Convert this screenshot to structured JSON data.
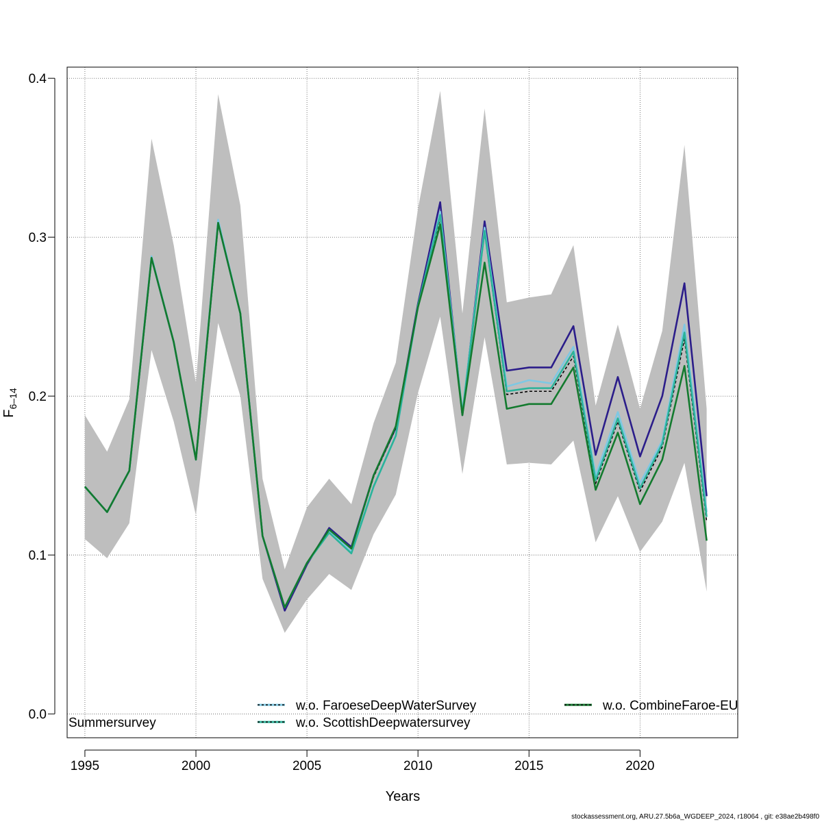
{
  "chart_data": {
    "type": "line",
    "xlabel": "Years",
    "ylabel": "F",
    "ylabel_sub": "6–14",
    "xlim": [
      1994.2,
      2024.4
    ],
    "ylim": [
      -0.015,
      0.407
    ],
    "xticks": [
      1995,
      2000,
      2005,
      2010,
      2015,
      2020
    ],
    "yticks": [
      0.0,
      0.1,
      0.2,
      0.3,
      0.4
    ],
    "ytick_labels": [
      "0.0",
      "0.1",
      "0.2",
      "0.3",
      "0.4"
    ],
    "grid": true,
    "x": [
      1995,
      1996,
      1997,
      1998,
      1999,
      2000,
      2001,
      2002,
      2003,
      2004,
      2005,
      2006,
      2007,
      2008,
      2009,
      2010,
      2011,
      2012,
      2013,
      2014,
      2015,
      2016,
      2017,
      2018,
      2019,
      2020,
      2021,
      2022,
      2023
    ],
    "band": {
      "color": "#bebebe",
      "upper": [
        0.188,
        0.165,
        0.198,
        0.362,
        0.295,
        0.208,
        0.39,
        0.32,
        0.148,
        0.091,
        0.13,
        0.148,
        0.132,
        0.183,
        0.221,
        0.318,
        0.392,
        0.252,
        0.381,
        0.259,
        0.262,
        0.264,
        0.295,
        0.194,
        0.245,
        0.192,
        0.241,
        0.358,
        0.192
      ],
      "lower": [
        0.11,
        0.098,
        0.12,
        0.229,
        0.184,
        0.125,
        0.246,
        0.2,
        0.085,
        0.051,
        0.072,
        0.088,
        0.078,
        0.113,
        0.138,
        0.202,
        0.25,
        0.151,
        0.237,
        0.157,
        0.158,
        0.157,
        0.172,
        0.108,
        0.137,
        0.102,
        0.121,
        0.158,
        0.077
      ]
    },
    "series": [
      {
        "color": "#2b1d8a",
        "dash": "",
        "values": [
          0.143,
          0.127,
          0.153,
          0.287,
          0.234,
          0.16,
          0.309,
          0.252,
          0.112,
          0.065,
          0.094,
          0.117,
          0.105,
          0.15,
          0.18,
          0.258,
          0.322,
          0.188,
          0.31,
          0.216,
          0.218,
          0.218,
          0.244,
          0.163,
          0.212,
          0.162,
          0.2,
          0.271,
          0.137
        ]
      },
      {
        "color": "#7ec8e3",
        "dash": "",
        "values": [
          0.143,
          0.127,
          0.153,
          0.288,
          0.234,
          0.16,
          0.311,
          0.252,
          0.112,
          0.067,
          0.095,
          0.115,
          0.102,
          0.143,
          0.175,
          0.256,
          0.316,
          0.19,
          0.306,
          0.206,
          0.21,
          0.208,
          0.231,
          0.15,
          0.19,
          0.145,
          0.172,
          0.245,
          0.127
        ]
      },
      {
        "name": "w.o. FaroeseDeepWaterSurvey",
        "color": "#000000",
        "dash": "4,3",
        "values": [
          0.143,
          0.127,
          0.153,
          0.287,
          0.234,
          0.16,
          0.309,
          0.252,
          0.112,
          0.067,
          0.095,
          0.116,
          0.104,
          0.149,
          0.18,
          0.257,
          0.312,
          0.188,
          0.303,
          0.201,
          0.203,
          0.203,
          0.225,
          0.145,
          0.184,
          0.14,
          0.168,
          0.236,
          0.121
        ]
      },
      {
        "name": "w.o. ScottishDeepwatersurvey",
        "color": "#2bb39a",
        "dash": "",
        "values": [
          0.143,
          0.127,
          0.153,
          0.287,
          0.234,
          0.16,
          0.309,
          0.252,
          0.112,
          0.067,
          0.095,
          0.114,
          0.101,
          0.143,
          0.175,
          0.257,
          0.314,
          0.189,
          0.304,
          0.203,
          0.205,
          0.205,
          0.228,
          0.147,
          0.186,
          0.142,
          0.17,
          0.24,
          0.124
        ]
      },
      {
        "name": "w.o. CombineFaroe-EU",
        "color": "#137a2e",
        "dash": "",
        "values": [
          0.143,
          0.127,
          0.153,
          0.287,
          0.234,
          0.16,
          0.309,
          0.252,
          0.112,
          0.067,
          0.095,
          0.116,
          0.104,
          0.15,
          0.181,
          0.256,
          0.308,
          0.188,
          0.284,
          0.192,
          0.195,
          0.195,
          0.218,
          0.141,
          0.177,
          0.132,
          0.16,
          0.219,
          0.109
        ]
      }
    ],
    "legend_labels": {
      "faroese": "w.o. FaroeseDeepWaterSurvey",
      "scottish": "w.o. ScottishDeepwatersurvey",
      "combine": "w.o. CombineFaroe-EU",
      "summer": "Summersurvey"
    }
  },
  "footer": "stockassessment.org, ARU.27.5b6a_WGDEEP_2024, r18064 , git: e38ae2b498f0"
}
